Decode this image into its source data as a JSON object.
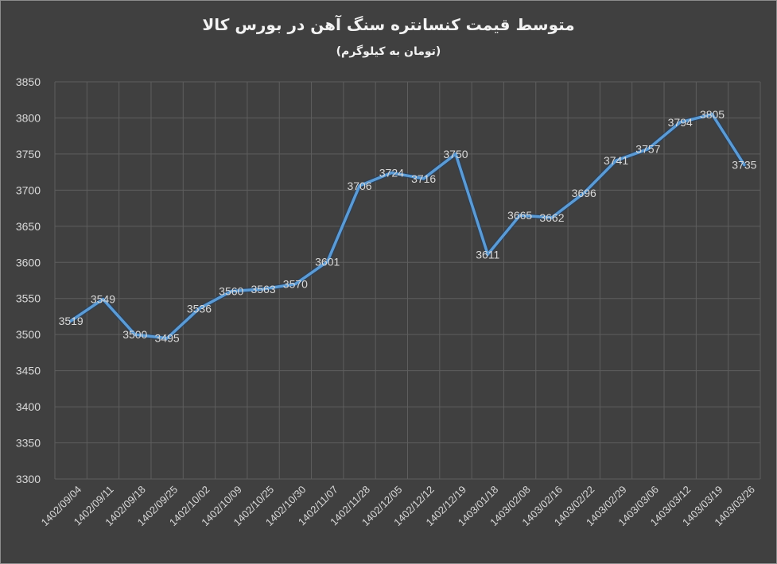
{
  "chart_data": {
    "type": "line",
    "title": "متوسط قیمت کنسانتره سنگ آهن در بورس کالا",
    "subtitle": "(تومان به کیلوگرم)",
    "xlabel": "",
    "ylabel": "",
    "ylim": [
      3300,
      3850
    ],
    "ytick_step": 50,
    "grid": true,
    "legend": "none",
    "categories": [
      "1402/09/04",
      "1402/09/11",
      "1402/09/18",
      "1402/09/25",
      "1402/10/02",
      "1402/10/09",
      "1402/10/25",
      "1402/10/30",
      "1402/11/07",
      "1402/11/28",
      "1402/12/05",
      "1402/12/12",
      "1402/12/19",
      "1403/01/18",
      "1403/02/08",
      "1403/02/16",
      "1403/02/22",
      "1403/02/29",
      "1403/03/06",
      "1403/03/12",
      "1403/03/19",
      "1403/03/26"
    ],
    "series": [
      {
        "values": [
          3519,
          3549,
          3500,
          3495,
          3536,
          3560,
          3563,
          3570,
          3601,
          3706,
          3724,
          3716,
          3750,
          3611,
          3665,
          3662,
          3696,
          3741,
          3757,
          3794,
          3805,
          3735
        ],
        "color": "#5b9bd5"
      }
    ]
  }
}
